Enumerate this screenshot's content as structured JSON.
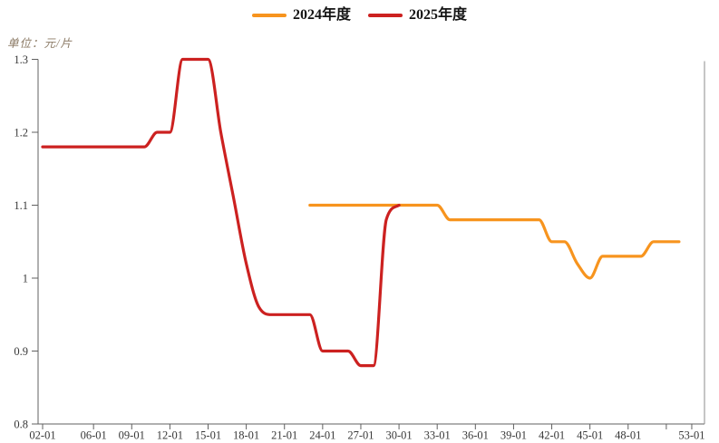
{
  "unit_label": "单位：元/片",
  "legend": {
    "items": [
      {
        "label": "2024年度",
        "color": "#F7941E"
      },
      {
        "label": "2025年度",
        "color": "#CC2120"
      }
    ]
  },
  "colors": {
    "series_2024": "#F7941E",
    "series_2025": "#CC2120",
    "axis_line": "#606060",
    "right_spine": "#8c8c8c",
    "tick_label": "#383838",
    "background": "#ffffff"
  },
  "chart_data": {
    "type": "line",
    "title": "",
    "xlabel": "",
    "ylabel": "单位：元/片",
    "grid": false,
    "legend_position": "top-center",
    "smooth": true,
    "x_axis": {
      "kind": "week-of-year",
      "range_weeks": [
        2,
        54
      ],
      "labels": [
        {
          "week": 2,
          "text": "02-01"
        },
        {
          "week": 6,
          "text": "06-01"
        },
        {
          "week": 9,
          "text": "09-01"
        },
        {
          "week": 12,
          "text": "12-01"
        },
        {
          "week": 15,
          "text": "15-01"
        },
        {
          "week": 18,
          "text": "18-01"
        },
        {
          "week": 21,
          "text": "21-01"
        },
        {
          "week": 24,
          "text": "24-01"
        },
        {
          "week": 27,
          "text": "27-01"
        },
        {
          "week": 30,
          "text": "30-01"
        },
        {
          "week": 33,
          "text": "33-01"
        },
        {
          "week": 36,
          "text": "36-01"
        },
        {
          "week": 39,
          "text": "39-01"
        },
        {
          "week": 42,
          "text": "42-01"
        },
        {
          "week": 45,
          "text": "45-01"
        },
        {
          "week": 48,
          "text": "48-01"
        },
        {
          "week": 53,
          "text": "53-01"
        }
      ],
      "unlabeled_tick_weeks": [
        51
      ]
    },
    "y_axis": {
      "range": [
        0.8,
        1.3
      ],
      "ticks": [
        1.3,
        1.2,
        1.1,
        1,
        0.9,
        0.8
      ],
      "tick_labels": [
        "1.3",
        "1.2",
        "1.1",
        "1",
        "0.9",
        "0.8"
      ]
    },
    "series": [
      {
        "name": "2024年度",
        "color": "#F7941E",
        "points": [
          [
            23,
            1.1
          ],
          [
            24,
            1.1
          ],
          [
            25,
            1.1
          ],
          [
            26,
            1.1
          ],
          [
            27,
            1.1
          ],
          [
            28,
            1.1
          ],
          [
            29,
            1.1
          ],
          [
            30,
            1.1
          ],
          [
            31,
            1.1
          ],
          [
            32,
            1.1
          ],
          [
            33,
            1.1
          ],
          [
            34,
            1.08
          ],
          [
            35,
            1.08
          ],
          [
            36,
            1.08
          ],
          [
            37,
            1.08
          ],
          [
            38,
            1.08
          ],
          [
            39,
            1.08
          ],
          [
            40,
            1.08
          ],
          [
            41,
            1.08
          ],
          [
            42,
            1.05
          ],
          [
            43,
            1.05
          ],
          [
            44,
            1.02
          ],
          [
            45,
            1.0
          ],
          [
            46,
            1.03
          ],
          [
            47,
            1.03
          ],
          [
            48,
            1.03
          ],
          [
            49,
            1.03
          ],
          [
            50,
            1.05
          ],
          [
            51,
            1.05
          ],
          [
            52,
            1.05
          ]
        ]
      },
      {
        "name": "2025年度",
        "color": "#CC2120",
        "points": [
          [
            2,
            1.18
          ],
          [
            3,
            1.18
          ],
          [
            4,
            1.18
          ],
          [
            5,
            1.18
          ],
          [
            6,
            1.18
          ],
          [
            7,
            1.18
          ],
          [
            8,
            1.18
          ],
          [
            9,
            1.18
          ],
          [
            10,
            1.18
          ],
          [
            11,
            1.2
          ],
          [
            12,
            1.2
          ],
          [
            13,
            1.3
          ],
          [
            14,
            1.3
          ],
          [
            15,
            1.3
          ],
          [
            16,
            1.2
          ],
          [
            17,
            1.11
          ],
          [
            18,
            1.02
          ],
          [
            19,
            0.96
          ],
          [
            20,
            0.95
          ],
          [
            21,
            0.95
          ],
          [
            22,
            0.95
          ],
          [
            23,
            0.95
          ],
          [
            24,
            0.9
          ],
          [
            25,
            0.9
          ],
          [
            26,
            0.9
          ],
          [
            27,
            0.88
          ],
          [
            28,
            0.88
          ],
          [
            29,
            1.08
          ],
          [
            30,
            1.1
          ]
        ]
      }
    ]
  }
}
